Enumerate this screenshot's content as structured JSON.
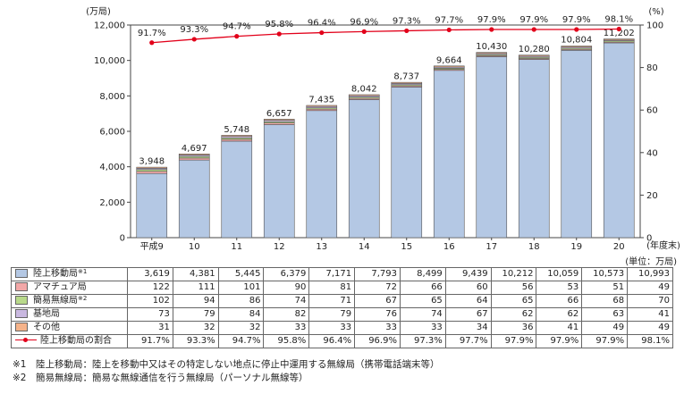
{
  "chart_data": {
    "type": "bar",
    "stacked": true,
    "y_unit_left": "(万局)",
    "y_unit_right": "(%)",
    "ylim": [
      0,
      12000
    ],
    "y2lim": [
      0,
      100
    ],
    "y_ticks": [
      "0",
      "2,000",
      "4,000",
      "6,000",
      "8,000",
      "10,000",
      "12,000"
    ],
    "y2_ticks": [
      "0",
      "20",
      "40",
      "60",
      "80",
      "100"
    ],
    "x_unit": "(年度末)",
    "categories": [
      "平成9",
      "10",
      "11",
      "12",
      "13",
      "14",
      "15",
      "16",
      "17",
      "18",
      "19",
      "20"
    ],
    "totals": [
      3948,
      4697,
      5748,
      6657,
      7435,
      8042,
      8737,
      9664,
      10430,
      10280,
      10804,
      11202
    ],
    "total_labels": [
      "3,948",
      "4,697",
      "5,748",
      "6,657",
      "7,435",
      "8,042",
      "8,737",
      "9,664",
      "10,430",
      "10,280",
      "10,804",
      "11,202"
    ],
    "series": [
      {
        "name": "陸上移動局",
        "note": "※1",
        "color": "#b4c8e4",
        "values": [
          3619,
          4381,
          5445,
          6379,
          7171,
          7793,
          8499,
          9439,
          10212,
          10059,
          10573,
          10993
        ],
        "labels": [
          "3,619",
          "4,381",
          "5,445",
          "6,379",
          "7,171",
          "7,793",
          "8,499",
          "9,439",
          "10,212",
          "10,059",
          "10,573",
          "10,993"
        ]
      },
      {
        "name": "アマチュア局",
        "note": "",
        "color": "#f2a7a7",
        "values": [
          122,
          111,
          101,
          90,
          81,
          72,
          66,
          60,
          56,
          53,
          51,
          49
        ],
        "labels": [
          "122",
          "111",
          "101",
          "90",
          "81",
          "72",
          "66",
          "60",
          "56",
          "53",
          "51",
          "49"
        ]
      },
      {
        "name": "簡易無線局",
        "note": "※2",
        "color": "#b8d98a",
        "values": [
          102,
          94,
          86,
          74,
          71,
          67,
          65,
          64,
          65,
          66,
          68,
          70
        ],
        "labels": [
          "102",
          "94",
          "86",
          "74",
          "71",
          "67",
          "65",
          "64",
          "65",
          "66",
          "68",
          "70"
        ]
      },
      {
        "name": "基地局",
        "note": "",
        "color": "#c9b8e0",
        "values": [
          73,
          79,
          84,
          82,
          79,
          76,
          74,
          67,
          62,
          62,
          63,
          41
        ],
        "labels": [
          "73",
          "79",
          "84",
          "82",
          "79",
          "76",
          "74",
          "67",
          "62",
          "62",
          "63",
          "41"
        ]
      },
      {
        "name": "その他",
        "note": "",
        "color": "#f5b38a",
        "values": [
          31,
          32,
          32,
          33,
          33,
          33,
          33,
          34,
          36,
          41,
          49,
          49
        ],
        "labels": [
          "31",
          "32",
          "32",
          "33",
          "33",
          "33",
          "33",
          "34",
          "36",
          "41",
          "49",
          "49"
        ]
      }
    ],
    "line": {
      "name": "陸上移動局の割合",
      "color": "#e2001a",
      "axis": "right",
      "values": [
        91.7,
        93.3,
        94.7,
        95.8,
        96.4,
        96.9,
        97.3,
        97.7,
        97.9,
        97.9,
        97.9,
        98.1
      ],
      "labels": [
        "91.7%",
        "93.3%",
        "94.7%",
        "95.8%",
        "96.4%",
        "96.9%",
        "97.3%",
        "97.7%",
        "97.9%",
        "97.9%",
        "97.9%",
        "98.1%"
      ]
    }
  },
  "table": {
    "unit_note": "(単位：万局)"
  },
  "notes": [
    "※1　陸上移動局：陸上を移動中又はその特定しない地点に停止中運用する無線局（携帯電話端末等）",
    "※2　簡易無線局：簡易な無線通信を行う無線局（パーソナル無線等）"
  ]
}
